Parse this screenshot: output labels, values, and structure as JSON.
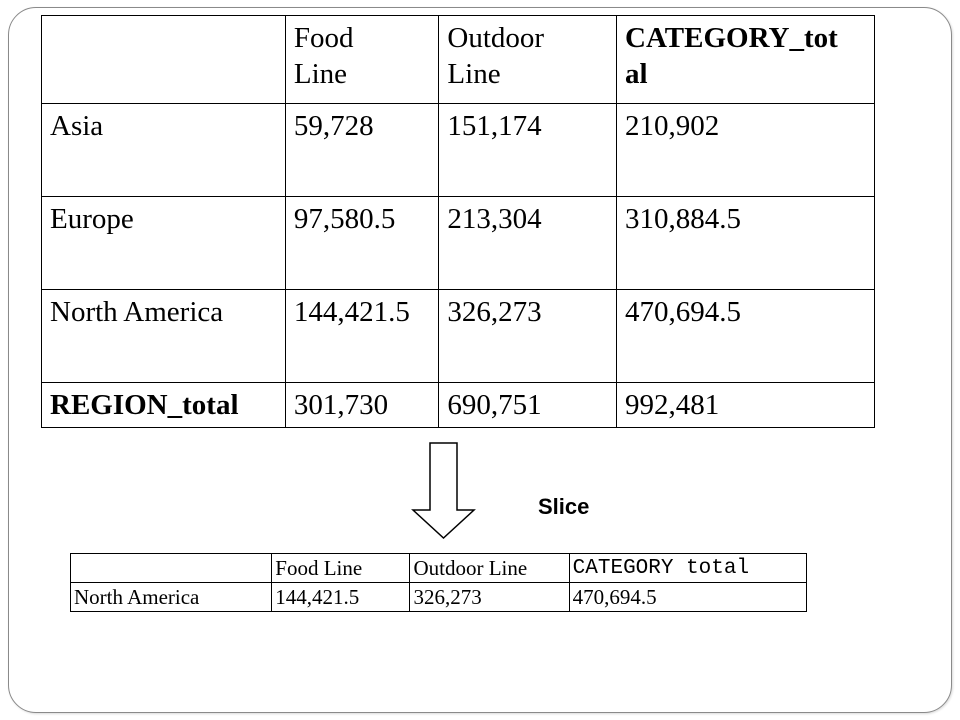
{
  "main_table": {
    "headers": [
      "",
      "Food Line",
      "Outdoor Line",
      "CATEGORY_total"
    ],
    "header_display": [
      "",
      "Food\nLine",
      "Outdoor\nLine",
      "CATEGORY_tot\nal"
    ],
    "rows": [
      {
        "region": "Asia",
        "food": "59,728",
        "outdoor": "151,174",
        "total": "210,902"
      },
      {
        "region": "Europe",
        "food": "97,580.5",
        "outdoor": "213,304",
        "total": "310,884.5"
      },
      {
        "region": "North America",
        "food": "144,421.5",
        "outdoor": "326,273",
        "total": "470,694.5"
      },
      {
        "region": "REGION_total",
        "food": "301,730",
        "outdoor": "690,751",
        "total": "992,481"
      }
    ]
  },
  "operation_label": "Slice",
  "slice_table": {
    "headers": [
      "",
      "Food Line",
      "Outdoor Line",
      "CATEGORY total"
    ],
    "row": {
      "region": "North America",
      "food": "144,421.5",
      "outdoor": "326,273",
      "total": "470,694.5"
    }
  }
}
